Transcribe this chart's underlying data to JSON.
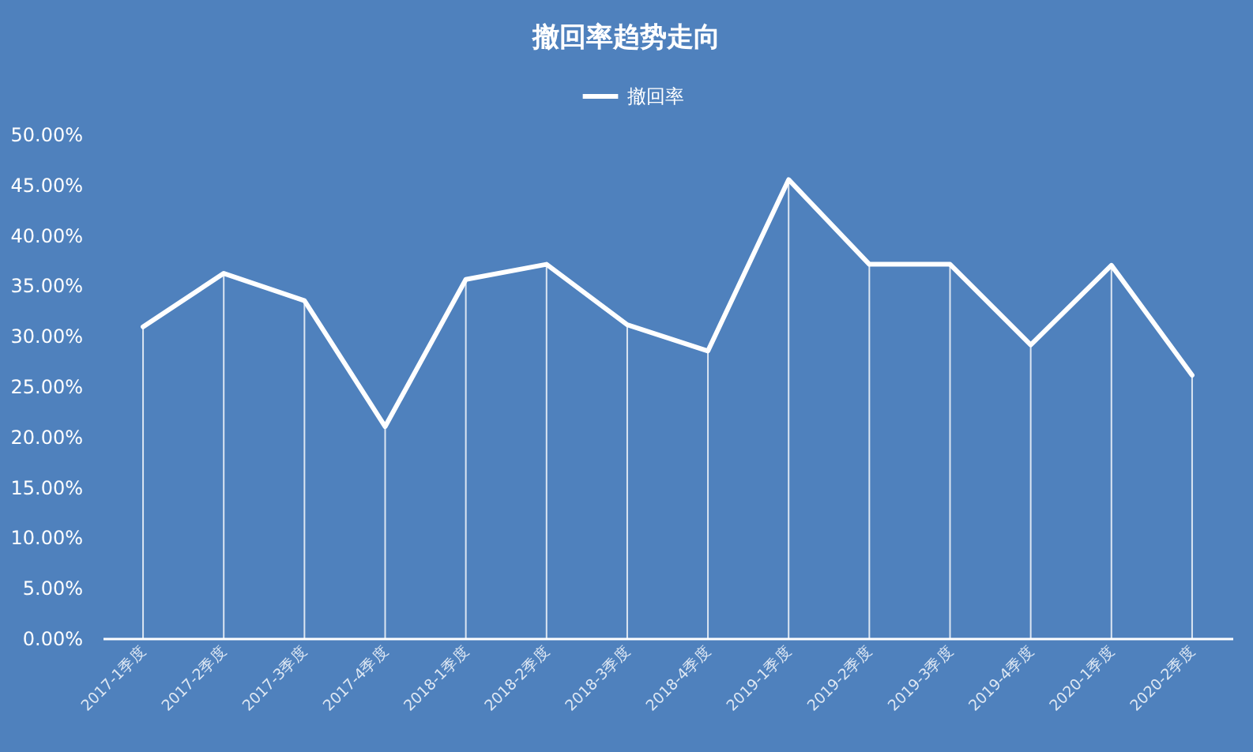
{
  "chart_data": {
    "type": "line",
    "title": "撤回率趋势走向",
    "categories": [
      "2017-1季度",
      "2017-2季度",
      "2017-3季度",
      "2017-4季度",
      "2018-1季度",
      "2018-2季度",
      "2018-3季度",
      "2018-4季度",
      "2019-1季度",
      "2019-2季度",
      "2019-3季度",
      "2019-4季度",
      "2020-1季度",
      "2020-2季度"
    ],
    "series": [
      {
        "type": "bar",
        "color": "#ffffff",
        "values": [
          30.9,
          36.2,
          33.5,
          21.0,
          35.6,
          37.1,
          31.1,
          28.5,
          45.5,
          37.1,
          37.1,
          29.1,
          37.0,
          26.1
        ]
      },
      {
        "name": "撤回率",
        "color": "#ffffff",
        "values": [
          30.9,
          36.2,
          33.5,
          21.0,
          35.6,
          37.1,
          31.1,
          28.5,
          45.5,
          37.1,
          37.1,
          29.1,
          37.0,
          26.1
        ]
      }
    ],
    "ylim": [
      0,
      50
    ],
    "yticks": [
      {
        "value": 0,
        "label": "0.00%"
      },
      {
        "value": 5,
        "label": "5.00%"
      },
      {
        "value": 10,
        "label": "10.00%"
      },
      {
        "value": 15,
        "label": "15.00%"
      },
      {
        "value": 20,
        "label": "20.00%"
      },
      {
        "value": 25,
        "label": "25.00%"
      },
      {
        "value": 30,
        "label": "30.00%"
      },
      {
        "value": 35,
        "label": "35.00%"
      },
      {
        "value": 40,
        "label": "40.00%"
      },
      {
        "value": 45,
        "label": "45.00%"
      },
      {
        "value": 50,
        "label": "50.00%"
      }
    ],
    "legend": "top"
  }
}
